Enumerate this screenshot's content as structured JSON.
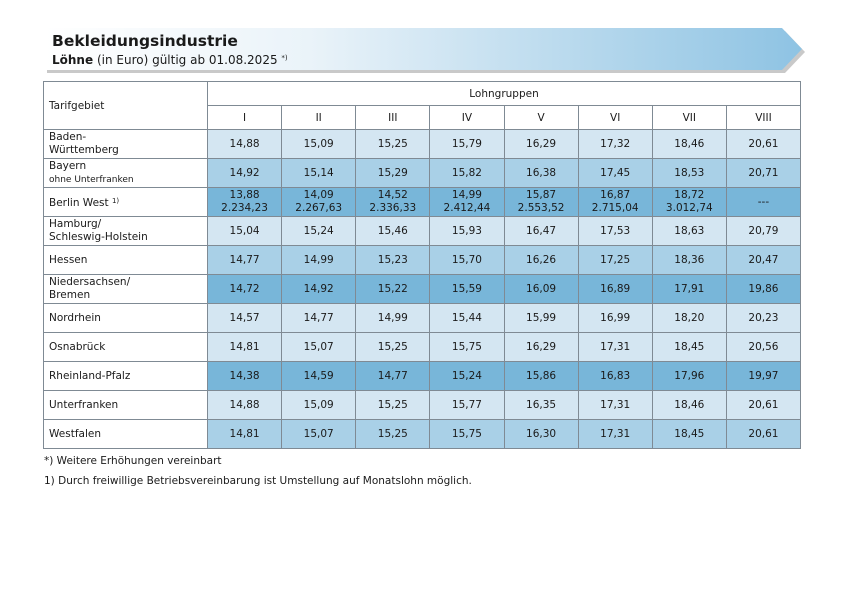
{
  "header": {
    "title": "Bekleidungsindustrie",
    "subtitle_bold": "Löhne",
    "subtitle_rest": " (in Euro) gültig ab 01.08.2025 ",
    "subtitle_note": "*)"
  },
  "table": {
    "region_header": "Tarifgebiet",
    "group_header": "Lohngruppen",
    "groups": [
      "I",
      "II",
      "III",
      "IV",
      "V",
      "VI",
      "VII",
      "VIII"
    ],
    "rows": [
      {
        "line1": "Baden-",
        "line2": "Württemberg",
        "note": "",
        "values": [
          "14,88",
          "15,09",
          "15,25",
          "15,79",
          "16,29",
          "17,32",
          "18,46",
          "20,61"
        ]
      },
      {
        "line1": "Bayern",
        "line2": "ohne Unterfranken",
        "note": "",
        "values": [
          "14,92",
          "15,14",
          "15,29",
          "15,82",
          "16,38",
          "17,45",
          "18,53",
          "20,71"
        ]
      },
      {
        "line1": "Berlin West",
        "line2": "",
        "note": "1)",
        "values": [
          "13,88",
          "14,09",
          "14,52",
          "14,99",
          "15,87",
          "16,87",
          "18,72",
          "---"
        ],
        "values2": [
          "2.234,23",
          "2.267,63",
          "2.336,33",
          "2.412,44",
          "2.553,52",
          "2.715,04",
          "3.012,74",
          ""
        ]
      },
      {
        "line1": "Hamburg/",
        "line2": "Schleswig-Holstein",
        "note": "",
        "values": [
          "15,04",
          "15,24",
          "15,46",
          "15,93",
          "16,47",
          "17,53",
          "18,63",
          "20,79"
        ]
      },
      {
        "line1": "Hessen",
        "line2": "",
        "note": "",
        "values": [
          "14,77",
          "14,99",
          "15,23",
          "15,70",
          "16,26",
          "17,25",
          "18,36",
          "20,47"
        ]
      },
      {
        "line1": "Niedersachsen/",
        "line2": "Bremen",
        "note": "",
        "values": [
          "14,72",
          "14,92",
          "15,22",
          "15,59",
          "16,09",
          "16,89",
          "17,91",
          "19,86"
        ]
      },
      {
        "line1": "Nordrhein",
        "line2": "",
        "note": "",
        "values": [
          "14,57",
          "14,77",
          "14,99",
          "15,44",
          "15,99",
          "16,99",
          "18,20",
          "20,23"
        ]
      },
      {
        "line1": "Osnabrück",
        "line2": "",
        "note": "",
        "values": [
          "14,81",
          "15,07",
          "15,25",
          "15,75",
          "16,29",
          "17,31",
          "18,45",
          "20,56"
        ]
      },
      {
        "line1": "Rheinland-Pfalz",
        "line2": "",
        "note": "",
        "values": [
          "14,38",
          "14,59",
          "14,77",
          "15,24",
          "15,86",
          "16,83",
          "17,96",
          "19,97"
        ]
      },
      {
        "line1": "Unterfranken",
        "line2": "",
        "note": "",
        "values": [
          "14,88",
          "15,09",
          "15,25",
          "15,77",
          "16,35",
          "17,31",
          "18,46",
          "20,61"
        ]
      },
      {
        "line1": "Westfalen",
        "line2": "",
        "note": "",
        "values": [
          "14,81",
          "15,07",
          "15,25",
          "15,75",
          "16,30",
          "17,31",
          "18,45",
          "20,61"
        ]
      }
    ]
  },
  "colors": {
    "light": "#d4e6f2",
    "medium": "#a9d0e7",
    "dark": "#78b6d9",
    "banner_start": "#ffffff",
    "banner_end": "#8ec3e3"
  },
  "footnotes": [
    "*)  Weitere Erhöhungen vereinbart",
    "1)  Durch freiwillige Betriebsvereinbarung ist Umstellung auf Monatslohn möglich."
  ]
}
